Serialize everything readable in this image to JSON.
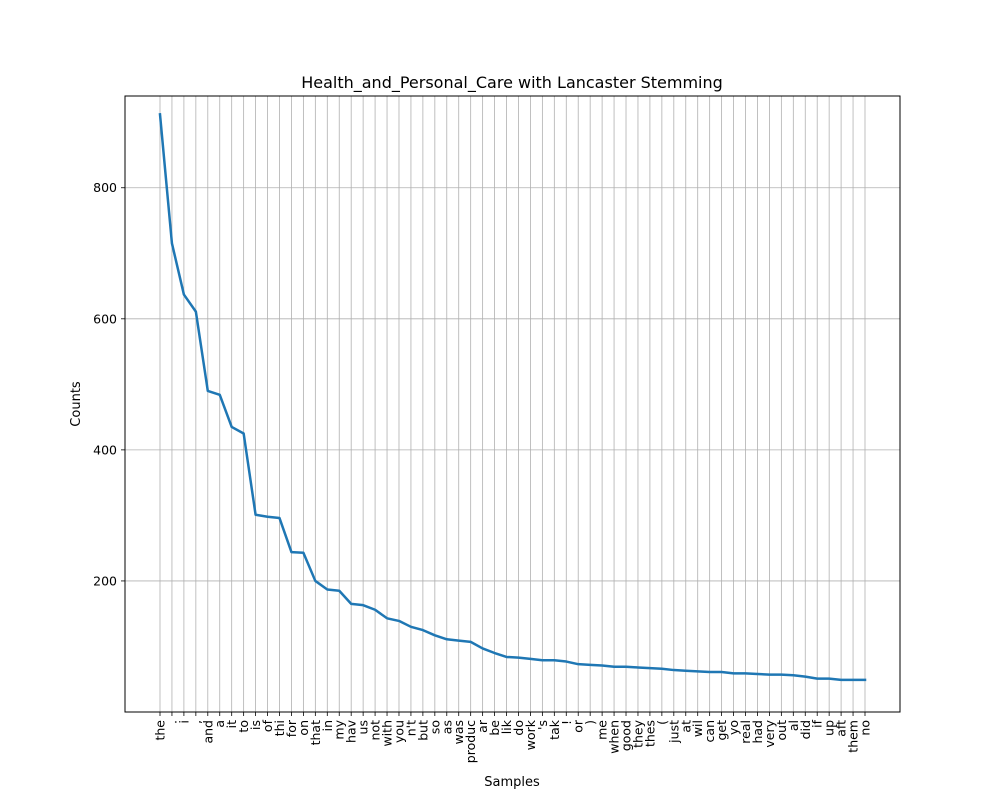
{
  "chart_data": {
    "type": "line",
    "title": "Health_and_Personal_Care with Lancaster Stemming",
    "xlabel": "Samples",
    "ylabel": "Counts",
    "grid": true,
    "ylim": [
      0,
      940
    ],
    "yticks": [
      200,
      400,
      600,
      800
    ],
    "line_color": "#1f77b4",
    "categories": [
      "the",
      ".",
      "i",
      ",",
      "and",
      "a",
      "it",
      "to",
      "is",
      "of",
      "thi",
      "for",
      "on",
      "that",
      "in",
      "my",
      "hav",
      "us",
      "not",
      "with",
      "you",
      "n't",
      "but",
      "so",
      "as",
      "was",
      "produc",
      "ar",
      "be",
      "lik",
      "do",
      "work",
      "'s",
      "tak",
      "!",
      "or",
      ")",
      "me",
      "when",
      "good",
      "they",
      "thes",
      "(",
      "just",
      "at",
      "wil",
      "can",
      "get",
      "yo",
      "real",
      "had",
      "very",
      "out",
      "al",
      "did",
      "if",
      "up",
      "aft",
      "them",
      "no"
    ],
    "series": [
      {
        "values": [
          912,
          715,
          637,
          611,
          490,
          484,
          435,
          425,
          301,
          298,
          296,
          244,
          243,
          200,
          187,
          185,
          165,
          163,
          156,
          143,
          139,
          130,
          125,
          117,
          111,
          109,
          107,
          97,
          90,
          84,
          83,
          81,
          79,
          79,
          77,
          73,
          72,
          71,
          69,
          69,
          68,
          67,
          66,
          64,
          63,
          62,
          61,
          61,
          59,
          59,
          58,
          57,
          57,
          56,
          54,
          51,
          51,
          49,
          49,
          49
        ]
      }
    ]
  }
}
